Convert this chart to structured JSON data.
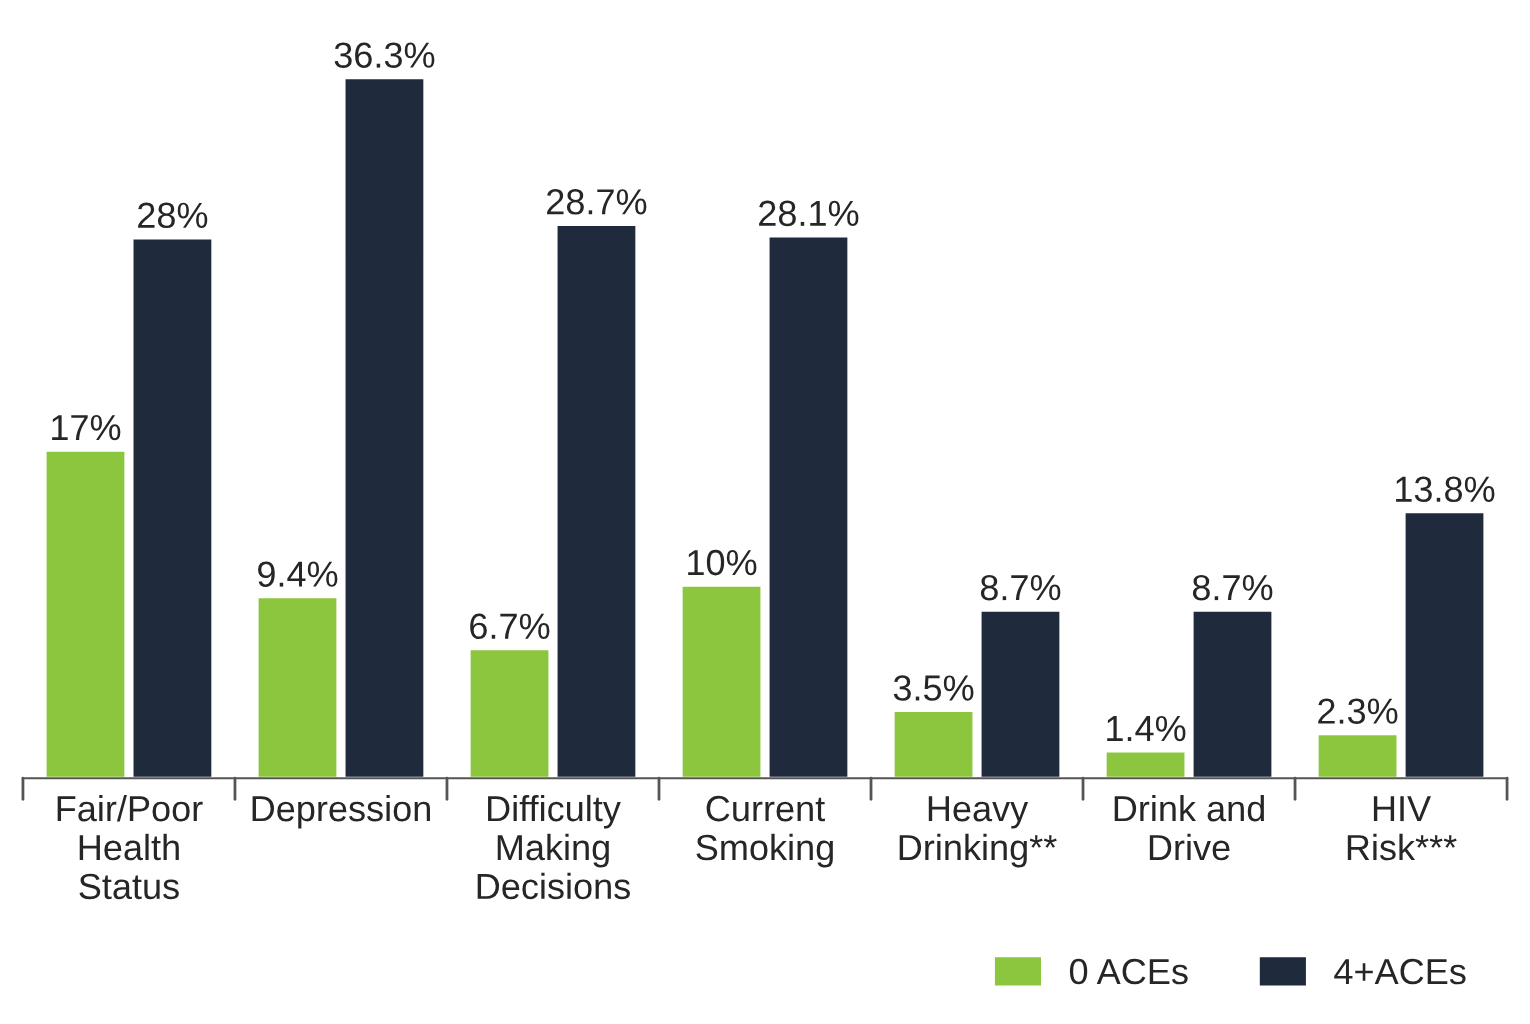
{
  "chart_data": {
    "type": "bar",
    "categories": [
      "Fair/Poor\nHealth\nStatus",
      "Depression",
      "Difficulty\nMaking\nDecisions",
      "Current\nSmoking",
      "Heavy\nDrinking**",
      "Drink and\nDrive",
      "HIV\nRisk***"
    ],
    "series": [
      {
        "name": "0 ACEs",
        "color": "#8cc63f",
        "values": [
          17,
          9.4,
          6.7,
          10,
          3.5,
          1.4,
          2.3
        ],
        "value_labels": [
          "17%",
          "9.4%",
          "6.7%",
          "10%",
          "3.5%",
          "1.4%",
          "2.3%"
        ]
      },
      {
        "name": "4+ACEs",
        "color": "#1f2a3d",
        "values": [
          28,
          36.3,
          28.7,
          28.1,
          8.7,
          8.7,
          13.8
        ],
        "value_labels": [
          "28%",
          "36.3%",
          "28.7%",
          "28.1%",
          "8.7%",
          "8.7%",
          "13.8%"
        ]
      }
    ],
    "legend": "bottom right",
    "grid": false
  }
}
